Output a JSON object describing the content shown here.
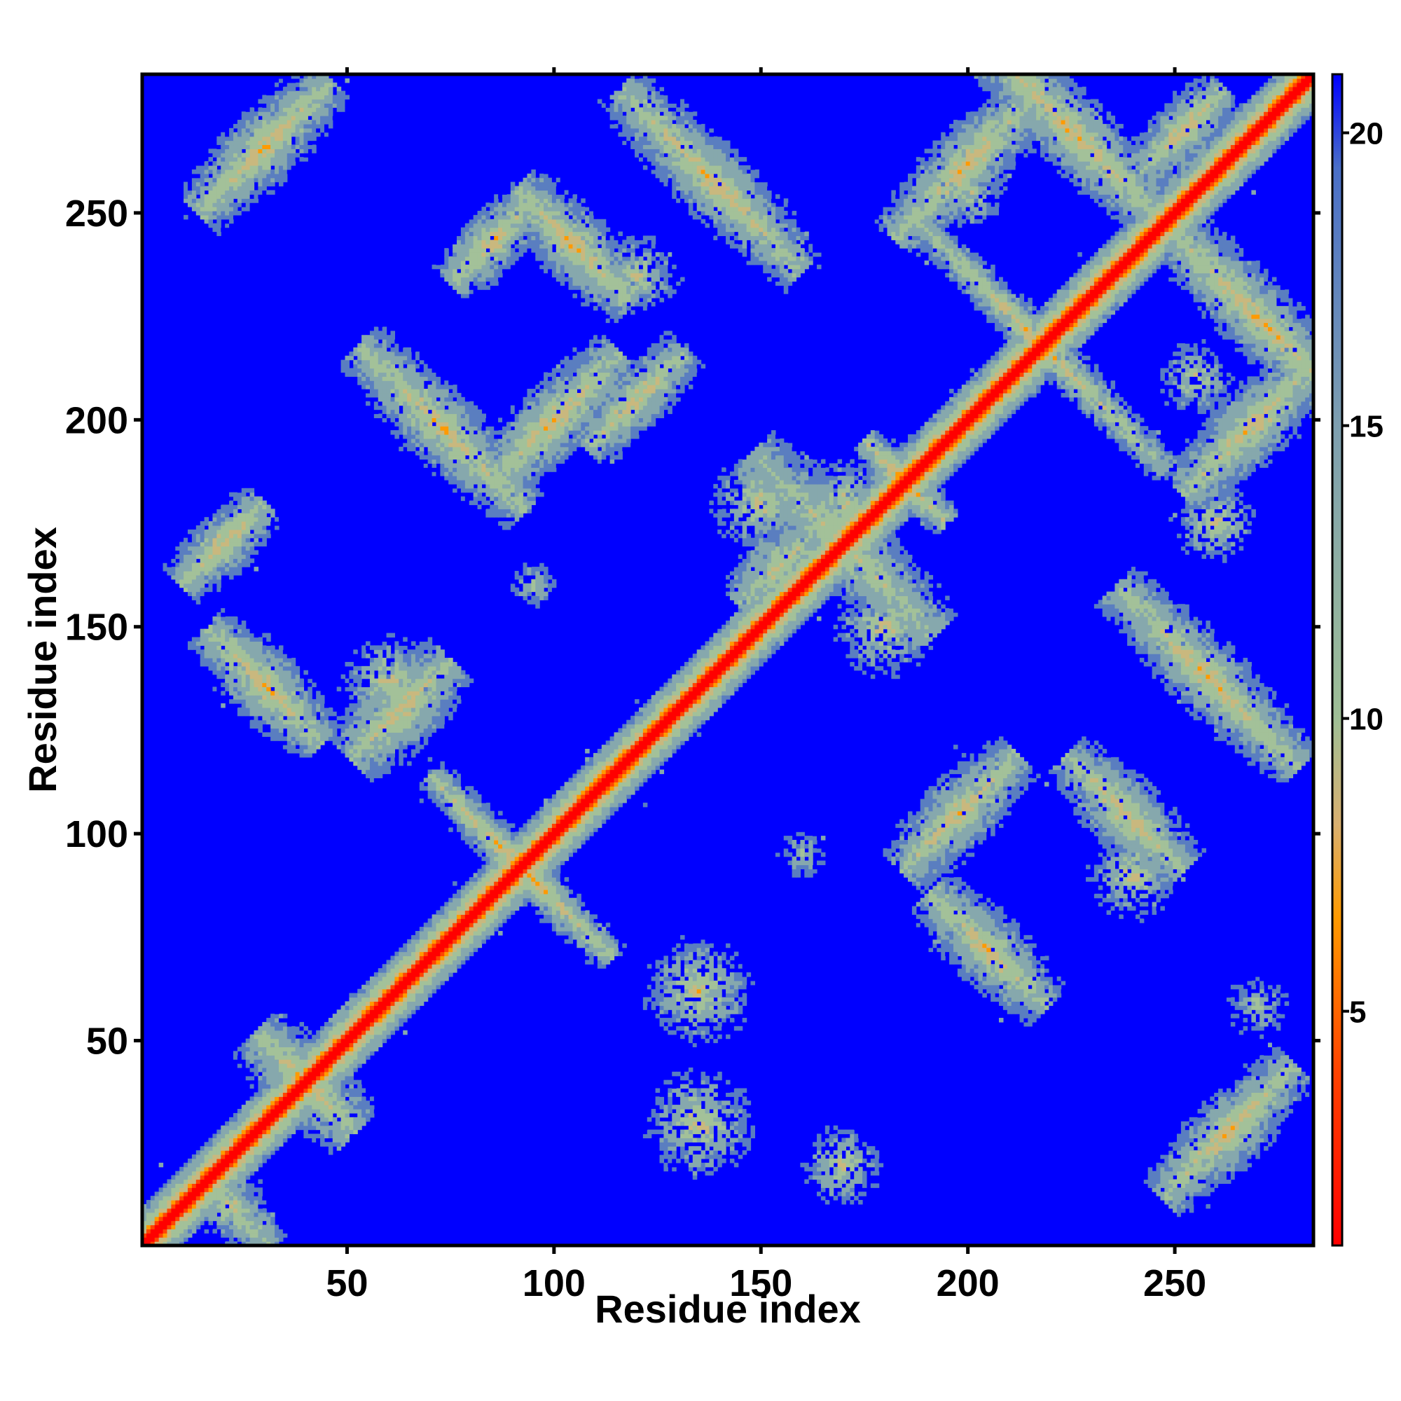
{
  "chart_data": {
    "type": "heatmap",
    "title": "",
    "xlabel": "Residue index",
    "ylabel": "Residue index",
    "xlim": [
      1,
      283
    ],
    "ylim": [
      1,
      283
    ],
    "x_ticks": [
      50,
      100,
      150,
      200,
      250
    ],
    "y_ticks": [
      50,
      100,
      150,
      200,
      250
    ],
    "x_tick_labels": [
      "50",
      "100",
      "150",
      "200",
      "250"
    ],
    "y_tick_labels": [
      "50",
      "100",
      "150",
      "200",
      "250"
    ],
    "colorbar": {
      "range": [
        1,
        21
      ],
      "ticks": [
        5,
        10,
        15,
        20
      ],
      "tick_labels": [
        "5",
        "10",
        "15",
        "20"
      ],
      "background_value": 21
    },
    "diagonal": {
      "from": 1,
      "to": 283,
      "value": 1,
      "width_residues": 9
    },
    "contact_bands": [
      {
        "type": "antiparallel",
        "center": [
          22,
          10
        ],
        "half_length": 10,
        "half_width": 6,
        "min_value": 7
      },
      {
        "type": "antiparallel",
        "center": [
          40,
          40
        ],
        "half_length": 12,
        "half_width": 8,
        "min_value": 6
      },
      {
        "type": "antiparallel",
        "center": [
          92,
          92
        ],
        "half_length": 22,
        "half_width": 4,
        "min_value": 5
      },
      {
        "type": "antiparallel",
        "center": [
          170,
          170
        ],
        "half_length": 22,
        "half_width": 9,
        "min_value": 7
      },
      {
        "type": "antiparallel",
        "center": [
          185,
          185
        ],
        "half_length": 10,
        "half_width": 4,
        "min_value": 5
      },
      {
        "type": "antiparallel",
        "center": [
          218,
          218
        ],
        "half_length": 30,
        "half_width": 4,
        "min_value": 6
      },
      {
        "type": "antiparallel",
        "center": [
          30,
          136
        ],
        "half_length": 14,
        "half_width": 7,
        "min_value": 6
      },
      {
        "type": "antiparallel",
        "center": [
          73,
          198
        ],
        "half_length": 20,
        "half_width": 7,
        "min_value": 6
      },
      {
        "type": "antiparallel",
        "center": [
          105,
          242
        ],
        "half_length": 14,
        "half_width": 7,
        "min_value": 6
      },
      {
        "type": "antiparallel",
        "center": [
          138,
          258
        ],
        "half_length": 22,
        "half_width": 7,
        "min_value": 6
      },
      {
        "type": "antiparallel",
        "center": [
          205,
          72
        ],
        "half_length": 14,
        "half_width": 7,
        "min_value": 6
      },
      {
        "type": "antiparallel",
        "center": [
          238,
          105
        ],
        "half_length": 14,
        "half_width": 7,
        "min_value": 6
      },
      {
        "type": "antiparallel",
        "center": [
          258,
          138
        ],
        "half_length": 22,
        "half_width": 7,
        "min_value": 6
      },
      {
        "type": "antiparallel",
        "center": [
          270,
          225
        ],
        "half_length": 26,
        "half_width": 7,
        "min_value": 6
      },
      {
        "type": "antiparallel",
        "center": [
          225,
          270
        ],
        "half_length": 26,
        "half_width": 7,
        "min_value": 6
      },
      {
        "type": "parallel",
        "center": [
          30,
          266
        ],
        "half_length": 16,
        "half_width": 7,
        "min_value": 6
      },
      {
        "type": "parallel",
        "center": [
          85,
          243
        ],
        "half_length": 10,
        "half_width": 6,
        "min_value": 6
      },
      {
        "type": "parallel",
        "center": [
          100,
          200
        ],
        "half_length": 16,
        "half_width": 7,
        "min_value": 6
      },
      {
        "type": "parallel",
        "center": [
          120,
          205
        ],
        "half_length": 12,
        "half_width": 6,
        "min_value": 6
      },
      {
        "type": "parallel",
        "center": [
          20,
          170
        ],
        "half_length": 10,
        "half_width": 6,
        "min_value": 6
      },
      {
        "type": "parallel",
        "center": [
          63,
          130
        ],
        "half_length": 12,
        "half_width": 8,
        "min_value": 6
      },
      {
        "type": "parallel",
        "center": [
          198,
          105
        ],
        "half_length": 14,
        "half_width": 7,
        "min_value": 6
      },
      {
        "type": "parallel",
        "center": [
          252,
          270
        ],
        "half_length": 10,
        "half_width": 6,
        "min_value": 6
      },
      {
        "type": "parallel",
        "center": [
          263,
          28
        ],
        "half_length": 16,
        "half_width": 7,
        "min_value": 6
      },
      {
        "type": "parallel",
        "center": [
          200,
          262
        ],
        "half_length": 18,
        "half_width": 7,
        "min_value": 6
      },
      {
        "type": "parallel",
        "center": [
          268,
          198
        ],
        "half_length": 16,
        "half_width": 7,
        "min_value": 6
      },
      {
        "type": "parallel",
        "center": [
          155,
          165
        ],
        "half_length": 10,
        "half_width": 8,
        "min_value": 7
      },
      {
        "type": "blob",
        "center": [
          170,
          20
        ],
        "radius": 8,
        "min_value": 6
      },
      {
        "type": "blob",
        "center": [
          135,
          62
        ],
        "radius": 11,
        "min_value": 6
      },
      {
        "type": "blob",
        "center": [
          135,
          30
        ],
        "radius": 11,
        "min_value": 6
      },
      {
        "type": "blob",
        "center": [
          95,
          160
        ],
        "radius": 6,
        "min_value": 9
      },
      {
        "type": "blob",
        "center": [
          160,
          95
        ],
        "radius": 6,
        "min_value": 9
      },
      {
        "type": "blob",
        "center": [
          170,
          180
        ],
        "radius": 9,
        "min_value": 6
      },
      {
        "type": "blob",
        "center": [
          120,
          235
        ],
        "radius": 9,
        "min_value": 7
      },
      {
        "type": "blob",
        "center": [
          240,
          90
        ],
        "radius": 9,
        "min_value": 6
      },
      {
        "type": "blob",
        "center": [
          260,
          175
        ],
        "radius": 8,
        "min_value": 6
      },
      {
        "type": "blob",
        "center": [
          180,
          150
        ],
        "radius": 10,
        "min_value": 6
      },
      {
        "type": "blob",
        "center": [
          150,
          180
        ],
        "radius": 10,
        "min_value": 6
      },
      {
        "type": "blob",
        "center": [
          60,
          137
        ],
        "radius": 9,
        "min_value": 6
      },
      {
        "type": "blob",
        "center": [
          270,
          58
        ],
        "radius": 7,
        "min_value": 8
      },
      {
        "type": "blob",
        "center": [
          255,
          210
        ],
        "radius": 8,
        "min_value": 7
      },
      {
        "type": "blob",
        "center": [
          200,
          255
        ],
        "radius": 8,
        "min_value": 7
      },
      {
        "type": "blob",
        "center": [
          285,
          280
        ],
        "radius": 6,
        "min_value": 7
      }
    ],
    "colors": {
      "background": "#0000ff",
      "scale": [
        "#ff0000",
        "#ff6600",
        "#ffa000",
        "#a9c79a",
        "#6f8fb8",
        "#0000ff"
      ]
    }
  }
}
